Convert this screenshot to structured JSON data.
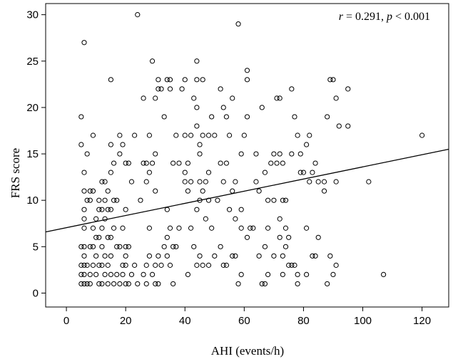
{
  "chart_data": {
    "type": "scatter",
    "title": "",
    "xlabel": "AHI (events/h)",
    "ylabel": "FRS score",
    "xlim": [
      -7,
      129
    ],
    "ylim": [
      -1.5,
      31.2
    ],
    "xticks": [
      0,
      20,
      40,
      60,
      80,
      100,
      120
    ],
    "yticks": [
      0,
      5,
      10,
      15,
      20,
      25,
      30
    ],
    "grid": false,
    "legend": "none",
    "annotation": {
      "r_symbol": "r",
      "r_value": "= 0.291,",
      "p_symbol": "p",
      "p_value": "< 0.001"
    },
    "fit_line": {
      "intercept": 7.05,
      "slope": 0.0655
    },
    "marker_color": "#000000",
    "points": [
      [
        5,
        1
      ],
      [
        5,
        2
      ],
      [
        5,
        3
      ],
      [
        5,
        5
      ],
      [
        5,
        16
      ],
      [
        5,
        19
      ],
      [
        6,
        1
      ],
      [
        6,
        2
      ],
      [
        6,
        3
      ],
      [
        6,
        4
      ],
      [
        6,
        5
      ],
      [
        6,
        7
      ],
      [
        6,
        8
      ],
      [
        6,
        9
      ],
      [
        6,
        11
      ],
      [
        6,
        13
      ],
      [
        6,
        27
      ],
      [
        7,
        1
      ],
      [
        7,
        3
      ],
      [
        7,
        15
      ],
      [
        7,
        10
      ],
      [
        8,
        1
      ],
      [
        8,
        2
      ],
      [
        8,
        5
      ],
      [
        8,
        10
      ],
      [
        8,
        11
      ],
      [
        9,
        3
      ],
      [
        9,
        5
      ],
      [
        9,
        7
      ],
      [
        9,
        11
      ],
      [
        9,
        17
      ],
      [
        10,
        2
      ],
      [
        10,
        4
      ],
      [
        10,
        6
      ],
      [
        10,
        8
      ],
      [
        11,
        1
      ],
      [
        11,
        3
      ],
      [
        11,
        6
      ],
      [
        11,
        9
      ],
      [
        11,
        10
      ],
      [
        12,
        1
      ],
      [
        12,
        3
      ],
      [
        12,
        5
      ],
      [
        12,
        7
      ],
      [
        12,
        9
      ],
      [
        12,
        12
      ],
      [
        13,
        2
      ],
      [
        13,
        4
      ],
      [
        13,
        8
      ],
      [
        13,
        10
      ],
      [
        13,
        12
      ],
      [
        14,
        1
      ],
      [
        14,
        3
      ],
      [
        14,
        6
      ],
      [
        14,
        9
      ],
      [
        14,
        11
      ],
      [
        15,
        2
      ],
      [
        15,
        4
      ],
      [
        15,
        6
      ],
      [
        15,
        9
      ],
      [
        15,
        13
      ],
      [
        15,
        16
      ],
      [
        15,
        23
      ],
      [
        16,
        1
      ],
      [
        16,
        7
      ],
      [
        16,
        10
      ],
      [
        16,
        14
      ],
      [
        17,
        2
      ],
      [
        17,
        5
      ],
      [
        17,
        10
      ],
      [
        18,
        1
      ],
      [
        18,
        5
      ],
      [
        18,
        15
      ],
      [
        18,
        17
      ],
      [
        19,
        2
      ],
      [
        19,
        3
      ],
      [
        19,
        7
      ],
      [
        19,
        16
      ],
      [
        20,
        1
      ],
      [
        20,
        3
      ],
      [
        20,
        4
      ],
      [
        20,
        5
      ],
      [
        20,
        9
      ],
      [
        20,
        14
      ],
      [
        21,
        1
      ],
      [
        21,
        5
      ],
      [
        21,
        14
      ],
      [
        22,
        2
      ],
      [
        22,
        12
      ],
      [
        23,
        3
      ],
      [
        23,
        17
      ],
      [
        24,
        1
      ],
      [
        24,
        30
      ],
      [
        25,
        10
      ],
      [
        26,
        2
      ],
      [
        26,
        14
      ],
      [
        26,
        21
      ],
      [
        27,
        1
      ],
      [
        27,
        3
      ],
      [
        27,
        12
      ],
      [
        27,
        14
      ],
      [
        28,
        4
      ],
      [
        28,
        7
      ],
      [
        28,
        13
      ],
      [
        28,
        17
      ],
      [
        29,
        2
      ],
      [
        29,
        14
      ],
      [
        29,
        25
      ],
      [
        30,
        1
      ],
      [
        30,
        3
      ],
      [
        30,
        11
      ],
      [
        30,
        15
      ],
      [
        30,
        21
      ],
      [
        31,
        1
      ],
      [
        31,
        4
      ],
      [
        31,
        22
      ],
      [
        31,
        23
      ],
      [
        32,
        3
      ],
      [
        32,
        22
      ],
      [
        33,
        5
      ],
      [
        33,
        19
      ],
      [
        34,
        4
      ],
      [
        34,
        6
      ],
      [
        34,
        9
      ],
      [
        34,
        23
      ],
      [
        35,
        3
      ],
      [
        35,
        7
      ],
      [
        35,
        22
      ],
      [
        35,
        23
      ],
      [
        36,
        1
      ],
      [
        36,
        5
      ],
      [
        36,
        14
      ],
      [
        37,
        5
      ],
      [
        37,
        17
      ],
      [
        38,
        14
      ],
      [
        38,
        7
      ],
      [
        39,
        22
      ],
      [
        40,
        12
      ],
      [
        40,
        13
      ],
      [
        40,
        17
      ],
      [
        40,
        23
      ],
      [
        41,
        2
      ],
      [
        41,
        11
      ],
      [
        41,
        14
      ],
      [
        42,
        7
      ],
      [
        42,
        12
      ],
      [
        42,
        17
      ],
      [
        43,
        5
      ],
      [
        43,
        21
      ],
      [
        44,
        3
      ],
      [
        44,
        9
      ],
      [
        44,
        18
      ],
      [
        44,
        20
      ],
      [
        44,
        23
      ],
      [
        44,
        25
      ],
      [
        45,
        4
      ],
      [
        45,
        10
      ],
      [
        45,
        12
      ],
      [
        45,
        15
      ],
      [
        45,
        16
      ],
      [
        46,
        3
      ],
      [
        46,
        11
      ],
      [
        46,
        17
      ],
      [
        46,
        23
      ],
      [
        47,
        8
      ],
      [
        47,
        12
      ],
      [
        48,
        3
      ],
      [
        48,
        10
      ],
      [
        48,
        13
      ],
      [
        48,
        17
      ],
      [
        49,
        7
      ],
      [
        49,
        19
      ],
      [
        50,
        4
      ],
      [
        50,
        17
      ],
      [
        51,
        10
      ],
      [
        52,
        5
      ],
      [
        52,
        14
      ],
      [
        52,
        22
      ],
      [
        53,
        3
      ],
      [
        53,
        12
      ],
      [
        53,
        20
      ],
      [
        54,
        3
      ],
      [
        54,
        19
      ],
      [
        54,
        14
      ],
      [
        55,
        17
      ],
      [
        55,
        9
      ],
      [
        56,
        4
      ],
      [
        56,
        11
      ],
      [
        56,
        21
      ],
      [
        57,
        4
      ],
      [
        57,
        8
      ],
      [
        57,
        12
      ],
      [
        58,
        29
      ],
      [
        58,
        1
      ],
      [
        59,
        2
      ],
      [
        59,
        7
      ],
      [
        59,
        9
      ],
      [
        59,
        15
      ],
      [
        60,
        17
      ],
      [
        61,
        6
      ],
      [
        61,
        19
      ],
      [
        61,
        23
      ],
      [
        61,
        24
      ],
      [
        62,
        7
      ],
      [
        63,
        7
      ],
      [
        64,
        12
      ],
      [
        64,
        15
      ],
      [
        65,
        4
      ],
      [
        65,
        11
      ],
      [
        66,
        1
      ],
      [
        66,
        20
      ],
      [
        67,
        1
      ],
      [
        67,
        13
      ],
      [
        67,
        5
      ],
      [
        68,
        2
      ],
      [
        68,
        7
      ],
      [
        68,
        10
      ],
      [
        69,
        14
      ],
      [
        70,
        4
      ],
      [
        70,
        10
      ],
      [
        70,
        15
      ],
      [
        71,
        14
      ],
      [
        71,
        21
      ],
      [
        72,
        21
      ],
      [
        72,
        15
      ],
      [
        72,
        6
      ],
      [
        72,
        8
      ],
      [
        73,
        2
      ],
      [
        73,
        4
      ],
      [
        73,
        10
      ],
      [
        73,
        14
      ],
      [
        74,
        5
      ],
      [
        74,
        10
      ],
      [
        74,
        7
      ],
      [
        75,
        3
      ],
      [
        75,
        6
      ],
      [
        76,
        3
      ],
      [
        76,
        15
      ],
      [
        76,
        22
      ],
      [
        77,
        3
      ],
      [
        77,
        19
      ],
      [
        78,
        1
      ],
      [
        78,
        2
      ],
      [
        78,
        17
      ],
      [
        79,
        13
      ],
      [
        79,
        15
      ],
      [
        80,
        13
      ],
      [
        81,
        2
      ],
      [
        81,
        7
      ],
      [
        81,
        16
      ],
      [
        82,
        17
      ],
      [
        82,
        12
      ],
      [
        83,
        4
      ],
      [
        83,
        13
      ],
      [
        84,
        4
      ],
      [
        84,
        14
      ],
      [
        85,
        6
      ],
      [
        85,
        12
      ],
      [
        87,
        11
      ],
      [
        87,
        12
      ],
      [
        88,
        1
      ],
      [
        88,
        19
      ],
      [
        89,
        4
      ],
      [
        89,
        23
      ],
      [
        90,
        2
      ],
      [
        90,
        23
      ],
      [
        91,
        3
      ],
      [
        91,
        12
      ],
      [
        91,
        21
      ],
      [
        92,
        18
      ],
      [
        95,
        18
      ],
      [
        95,
        22
      ],
      [
        102,
        12
      ],
      [
        107,
        2
      ],
      [
        120,
        17
      ]
    ]
  }
}
